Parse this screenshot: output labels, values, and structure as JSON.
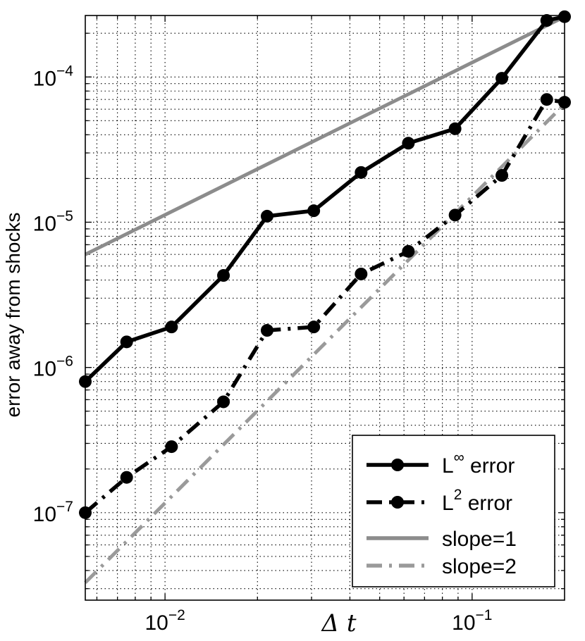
{
  "chart_data": {
    "type": "line",
    "title": "",
    "xlabel": "Δ t",
    "ylabel": "error away from shocks",
    "xscale": "log",
    "yscale": "log",
    "xlim": [
      0.0055,
      0.2
    ],
    "ylim": [
      2.5e-08,
      0.000265
    ],
    "grid": "dotted",
    "legend_position": "bottom-right",
    "x_ticks": [
      {
        "value": 0.01,
        "base": "10",
        "exp": "−2"
      },
      {
        "value": 0.1,
        "base": "10",
        "exp": "−1"
      }
    ],
    "y_ticks": [
      {
        "value": 1e-07,
        "base": "10",
        "exp": "−7"
      },
      {
        "value": 1e-06,
        "base": "10",
        "exp": "−6"
      },
      {
        "value": 1e-05,
        "base": "10",
        "exp": "−5"
      },
      {
        "value": 0.0001,
        "base": "10",
        "exp": "−4"
      }
    ],
    "series": [
      {
        "name": "L∞ error",
        "legend_base": "L",
        "legend_sup": "∞",
        "legend_suffix": " error",
        "color": "#000000",
        "style": "solid",
        "marker": "circle",
        "x": [
          0.0055,
          0.0075,
          0.0105,
          0.0155,
          0.0215,
          0.0305,
          0.0435,
          0.062,
          0.088,
          0.125,
          0.175,
          0.2
        ],
        "y": [
          8e-07,
          1.5e-06,
          1.9e-06,
          4.3e-06,
          1.1e-05,
          1.2e-05,
          2.2e-05,
          3.5e-05,
          4.4e-05,
          9.8e-05,
          0.000245,
          0.00026
        ]
      },
      {
        "name": "L2 error",
        "legend_base": "L",
        "legend_sup": "2",
        "legend_suffix": " error",
        "color": "#000000",
        "style": "dash-dot",
        "marker": "circle",
        "x": [
          0.0055,
          0.0075,
          0.0105,
          0.0155,
          0.0215,
          0.0305,
          0.0435,
          0.062,
          0.088,
          0.125,
          0.175,
          0.2
        ],
        "y": [
          1e-07,
          1.75e-07,
          2.85e-07,
          5.8e-07,
          1.8e-06,
          1.9e-06,
          4.4e-06,
          6.3e-06,
          1.12e-05,
          2.1e-05,
          7e-05,
          6.7e-05
        ]
      },
      {
        "name": "slope=1",
        "legend_base": "slope=1",
        "legend_sup": "",
        "legend_suffix": "",
        "color": "#8c8c8c",
        "style": "solid",
        "marker": "none",
        "x": [
          0.0055,
          0.2
        ],
        "y": [
          6e-06,
          0.00026
        ]
      },
      {
        "name": "slope=2",
        "legend_base": "slope=2",
        "legend_sup": "",
        "legend_suffix": "",
        "color": "#9a9a9a",
        "style": "dash-dot",
        "marker": "none",
        "x": [
          0.0055,
          0.2
        ],
        "y": [
          3.3e-08,
          6.5e-05
        ]
      }
    ]
  }
}
